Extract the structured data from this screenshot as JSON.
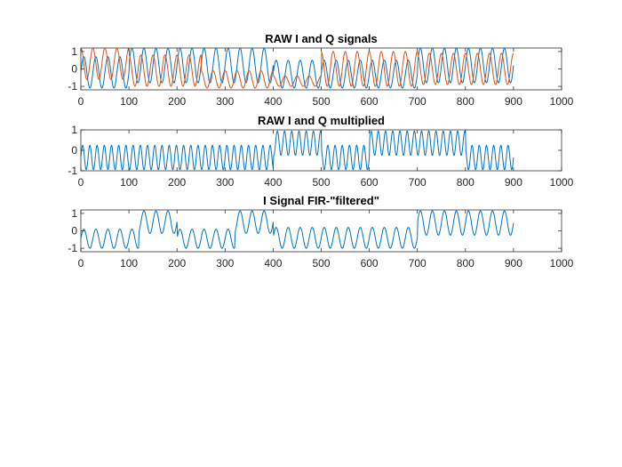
{
  "colors": {
    "series1": "#0072BD",
    "series2": "#D95319",
    "axis": "#262626",
    "background": "#ffffff"
  },
  "chart_data": [
    {
      "type": "line",
      "title": "RAW I and Q signals",
      "xlabel": "",
      "ylabel": "",
      "xlim": [
        0,
        1000
      ],
      "ylim": [
        -1.2,
        1.2
      ],
      "xticks": [
        0,
        100,
        200,
        300,
        400,
        500,
        600,
        700,
        800,
        900,
        1000
      ],
      "yticks": [
        -1,
        0,
        1
      ],
      "xtick_labels": [
        "0",
        "100",
        "200",
        "300",
        "400",
        "500",
        "600",
        "700",
        "800",
        "900",
        "1000"
      ],
      "ytick_labels": [
        "-1",
        "0",
        "1"
      ],
      "grid": false,
      "sampling": {
        "x_start": 0,
        "x_end": 900,
        "period": 25
      },
      "series": [
        {
          "color": "#0072BD",
          "segments": [
            {
              "x_start": 0,
              "x_end": 100,
              "baseline": -0.2,
              "amplitude": 0.9
            },
            {
              "x_start": 100,
              "x_end": 400,
              "baseline": 0.2,
              "amplitude": 1.0
            },
            {
              "x_start": 400,
              "x_end": 700,
              "baseline": -0.3,
              "amplitude": 0.8
            },
            {
              "x_start": 700,
              "x_end": 900,
              "baseline": 0.2,
              "amplitude": 1.0
            }
          ]
        },
        {
          "color": "#D95319",
          "segments": [
            {
              "x_start": 0,
              "x_end": 100,
              "baseline": 0.3,
              "amplitude": 0.9
            },
            {
              "x_start": 100,
              "x_end": 250,
              "baseline": -0.1,
              "amplitude": 0.9
            },
            {
              "x_start": 250,
              "x_end": 400,
              "baseline": -0.6,
              "amplitude": 0.5
            },
            {
              "x_start": 400,
              "x_end": 500,
              "baseline": -0.7,
              "amplitude": 0.3
            },
            {
              "x_start": 500,
              "x_end": 700,
              "baseline": 0.0,
              "amplitude": 1.0
            },
            {
              "x_start": 700,
              "x_end": 900,
              "baseline": 0.0,
              "amplitude": 0.9
            }
          ]
        }
      ]
    },
    {
      "type": "line",
      "title": "RAW I and Q multiplied",
      "xlabel": "",
      "ylabel": "",
      "xlim": [
        0,
        1000
      ],
      "ylim": [
        -1,
        1
      ],
      "xticks": [
        0,
        100,
        200,
        300,
        400,
        500,
        600,
        700,
        800,
        900,
        1000
      ],
      "yticks": [
        -1,
        0,
        1
      ],
      "xtick_labels": [
        "0",
        "100",
        "200",
        "300",
        "400",
        "500",
        "600",
        "700",
        "800",
        "900",
        "1000"
      ],
      "ytick_labels": [
        "-1",
        "0",
        "1"
      ],
      "grid": false,
      "sampling": {
        "x_start": 0,
        "x_end": 900,
        "period": 15
      },
      "series": [
        {
          "color": "#0072BD",
          "segments": [
            {
              "x_start": 0,
              "x_end": 400,
              "baseline": -0.35,
              "amplitude": 0.6
            },
            {
              "x_start": 400,
              "x_end": 500,
              "baseline": 0.35,
              "amplitude": 0.6
            },
            {
              "x_start": 500,
              "x_end": 600,
              "baseline": -0.35,
              "amplitude": 0.6
            },
            {
              "x_start": 600,
              "x_end": 800,
              "baseline": 0.35,
              "amplitude": 0.6
            },
            {
              "x_start": 800,
              "x_end": 900,
              "baseline": -0.35,
              "amplitude": 0.6
            }
          ]
        }
      ]
    },
    {
      "type": "line",
      "title": "I Signal FIR-\"filtered\"",
      "xlabel": "",
      "ylabel": "",
      "xlim": [
        0,
        1000
      ],
      "ylim": [
        -1.2,
        1.2
      ],
      "xticks": [
        0,
        100,
        200,
        300,
        400,
        500,
        600,
        700,
        800,
        900,
        1000
      ],
      "yticks": [
        -1,
        0,
        1
      ],
      "xtick_labels": [
        "0",
        "100",
        "200",
        "300",
        "400",
        "500",
        "600",
        "700",
        "800",
        "900",
        "1000"
      ],
      "ytick_labels": [
        "-1",
        "0",
        "1"
      ],
      "grid": false,
      "sampling": {
        "x_start": 0,
        "x_end": 900,
        "period": 25
      },
      "series": [
        {
          "color": "#0072BD",
          "segments": [
            {
              "x_start": 0,
              "x_end": 120,
              "baseline": -0.45,
              "amplitude": 0.55
            },
            {
              "x_start": 120,
              "x_end": 200,
              "baseline": 0.5,
              "amplitude": 0.65
            },
            {
              "x_start": 200,
              "x_end": 320,
              "baseline": -0.45,
              "amplitude": 0.55
            },
            {
              "x_start": 320,
              "x_end": 400,
              "baseline": 0.5,
              "amplitude": 0.65
            },
            {
              "x_start": 400,
              "x_end": 700,
              "baseline": -0.4,
              "amplitude": 0.6
            },
            {
              "x_start": 700,
              "x_end": 900,
              "baseline": 0.45,
              "amplitude": 0.7
            }
          ]
        }
      ]
    }
  ]
}
